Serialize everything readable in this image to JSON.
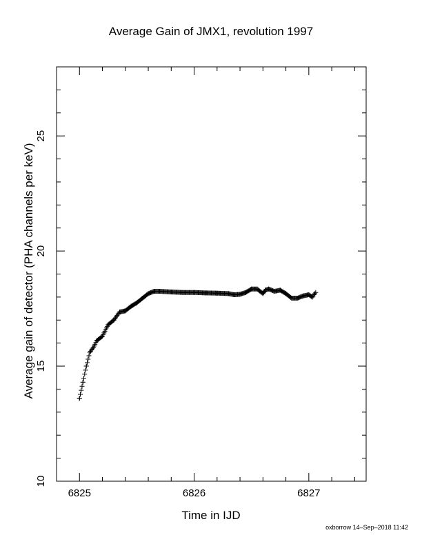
{
  "chart_data": {
    "type": "scatter",
    "title": "Average Gain of JMX1, revolution 1997",
    "xlabel": "Time in IJD",
    "ylabel": "Average gain of detector (PHA channels per keV)",
    "xlim": [
      6824.8,
      6827.5
    ],
    "ylim": [
      10,
      28
    ],
    "x_ticks": [
      6825,
      6826,
      6827
    ],
    "y_ticks": [
      10,
      15,
      20,
      25
    ],
    "grid": false,
    "marker": "+",
    "series": [
      {
        "x": [
          6825.0,
          6825.03,
          6825.06,
          6825.09,
          6825.12,
          6825.15,
          6825.2,
          6825.25,
          6825.3,
          6825.35,
          6825.4,
          6825.45,
          6825.5,
          6825.55,
          6825.6,
          6825.65,
          6825.7,
          6825.8,
          6825.9,
          6826.0,
          6826.1,
          6826.2,
          6826.3,
          6826.35,
          6826.4,
          6826.45,
          6826.5,
          6826.55,
          6826.6,
          6826.62,
          6826.65,
          6826.7,
          6826.75,
          6826.8,
          6826.85,
          6826.9,
          6826.95,
          6827.0,
          6827.03,
          6827.06
        ],
        "y": [
          13.6,
          14.3,
          15.0,
          15.6,
          15.8,
          16.1,
          16.3,
          16.8,
          17.0,
          17.35,
          17.4,
          17.6,
          17.75,
          17.95,
          18.15,
          18.25,
          18.25,
          18.22,
          18.2,
          18.2,
          18.18,
          18.17,
          18.15,
          18.1,
          18.12,
          18.2,
          18.35,
          18.35,
          18.15,
          18.3,
          18.35,
          18.25,
          18.3,
          18.15,
          17.95,
          17.95,
          18.05,
          18.1,
          18.0,
          18.2
        ]
      }
    ]
  },
  "footer": "oxborrow 14–Sep–2018 11:42"
}
